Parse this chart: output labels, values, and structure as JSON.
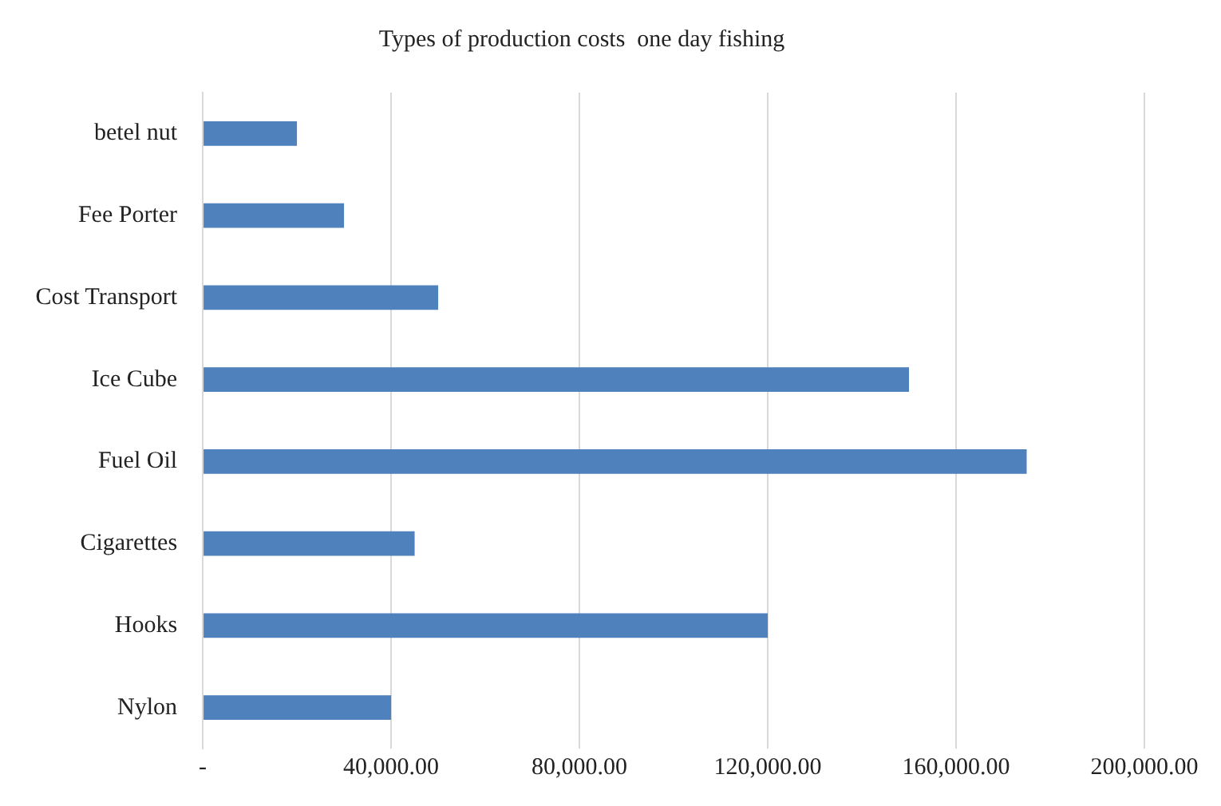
{
  "chart_data": {
    "type": "bar",
    "orientation": "horizontal",
    "title": "Types of production costs  one day fishing",
    "categories": [
      "betel nut",
      "Fee Porter",
      "Cost Transport",
      "Ice Cube",
      "Fuel Oil",
      "Cigarettes",
      "Hooks",
      "Nylon"
    ],
    "values": [
      20000,
      30000,
      50000,
      150000,
      175000,
      45000,
      120000,
      40000
    ],
    "color": "#4f81bd",
    "xlim": [
      0,
      200000
    ],
    "xticks": [
      {
        "value": 0,
        "label": "-"
      },
      {
        "value": 40000,
        "label": "40,000.00"
      },
      {
        "value": 80000,
        "label": "80,000.00"
      },
      {
        "value": 120000,
        "label": "120,000.00"
      },
      {
        "value": 160000,
        "label": "160,000.00"
      },
      {
        "value": 200000,
        "label": "200,000.00"
      }
    ],
    "grid": "x",
    "legend": false
  }
}
